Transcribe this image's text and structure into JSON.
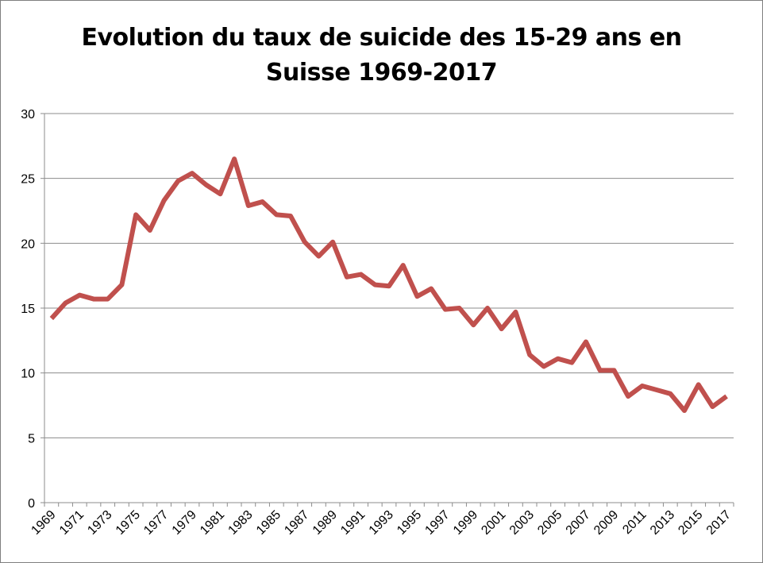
{
  "chart_data": {
    "type": "line",
    "title_line1": "Evolution du taux de suicide des 15-29 ans en",
    "title_line2": "Suisse 1969-2017",
    "xlabel": "",
    "ylabel": "",
    "ylim": [
      0,
      30
    ],
    "yticks": [
      0,
      5,
      10,
      15,
      20,
      25,
      30
    ],
    "grid": true,
    "legend": "none",
    "series_color": "#c0504d",
    "x": [
      1969,
      1970,
      1971,
      1972,
      1973,
      1974,
      1975,
      1976,
      1977,
      1978,
      1979,
      1980,
      1981,
      1982,
      1983,
      1984,
      1985,
      1986,
      1987,
      1988,
      1989,
      1990,
      1991,
      1992,
      1993,
      1994,
      1995,
      1996,
      1997,
      1998,
      1999,
      2000,
      2001,
      2002,
      2003,
      2004,
      2005,
      2006,
      2007,
      2008,
      2009,
      2010,
      2011,
      2012,
      2013,
      2014,
      2015,
      2016,
      2017
    ],
    "xtick_labels": [
      "1969",
      "1971",
      "1973",
      "1975",
      "1977",
      "1979",
      "1981",
      "1983",
      "1985",
      "1987",
      "1989",
      "1991",
      "1993",
      "1995",
      "1997",
      "1999",
      "2001",
      "2003",
      "2005",
      "2007",
      "2009",
      "2011",
      "2013",
      "2015",
      "2017"
    ],
    "series": [
      {
        "values": [
          14.2,
          15.4,
          16.0,
          15.7,
          15.7,
          16.8,
          22.2,
          21.0,
          23.3,
          24.8,
          25.4,
          24.5,
          23.8,
          26.5,
          22.9,
          23.2,
          22.2,
          22.1,
          20.1,
          19.0,
          20.1,
          17.4,
          17.6,
          16.8,
          16.7,
          18.3,
          15.9,
          16.5,
          14.9,
          15.0,
          13.7,
          15.0,
          13.4,
          14.7,
          11.4,
          10.5,
          11.1,
          10.8,
          12.4,
          10.2,
          10.2,
          8.2,
          9.0,
          8.7,
          8.4,
          7.1,
          9.1,
          7.4,
          8.2
        ]
      }
    ]
  }
}
